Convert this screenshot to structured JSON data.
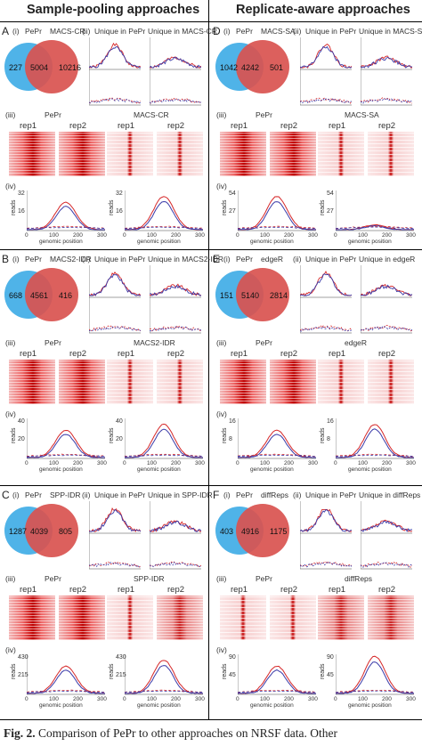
{
  "headers": {
    "left": "Sample-pooling approaches",
    "right": "Replicate-aware approaches"
  },
  "panels": [
    {
      "id": "A",
      "label": "A",
      "method": "MACS-CR",
      "venn": {
        "left": "227",
        "center": "5004",
        "right": "10216"
      },
      "sub_i": "(i)",
      "sub_ii": "(ii)",
      "sub_iii": "(iii)",
      "sub_iv": "(iv)",
      "unique_pepr": "Unique in PePr",
      "unique_other": "Unique in MACS-CR",
      "heat_left_title": "PePr",
      "heat_right_title": "MACS-CR",
      "rep1": "rep1",
      "rep2": "rep2",
      "ylabel": "reads",
      "yticks_a": [
        "32",
        "16"
      ],
      "yticks_b": [
        "32",
        "16"
      ],
      "xticks": [
        "0",
        "100",
        "200",
        "300"
      ],
      "xlabel": "genomic position"
    },
    {
      "id": "B",
      "label": "B",
      "method": "MACS2-IDR",
      "venn": {
        "left": "668",
        "center": "4561",
        "right": "416"
      },
      "sub_i": "(i)",
      "sub_ii": "(ii)",
      "sub_iii": "(iii)",
      "sub_iv": "(iv)",
      "unique_pepr": "Unique in PePr",
      "unique_other": "Unique in MACS2-IDR",
      "heat_left_title": "PePr",
      "heat_right_title": "MACS2-IDR",
      "rep1": "rep1",
      "rep2": "rep2",
      "ylabel": "reads",
      "yticks_a": [
        "40",
        "20"
      ],
      "yticks_b": [
        "40",
        "20"
      ],
      "xticks": [
        "0",
        "100",
        "200",
        "300"
      ],
      "xlabel": "genomic position"
    },
    {
      "id": "C",
      "label": "C",
      "method": "SPP-IDR",
      "venn": {
        "left": "1287",
        "center": "4039",
        "right": "805"
      },
      "sub_i": "(i)",
      "sub_ii": "(ii)",
      "sub_iii": "(iii)",
      "sub_iv": "(iv)",
      "unique_pepr": "Unique in PePr",
      "unique_other": "Unique in SPP-IDR",
      "heat_left_title": "PePr",
      "heat_right_title": "SPP-IDR",
      "rep1": "rep1",
      "rep2": "rep2",
      "ylabel": "reads",
      "yticks_a": [
        "430",
        "215"
      ],
      "yticks_b": [
        "430",
        "215"
      ],
      "xticks": [
        "0",
        "100",
        "200",
        "300"
      ],
      "xlabel": "genomic position"
    },
    {
      "id": "D",
      "label": "D",
      "method": "MACS-SA",
      "venn": {
        "left": "1042",
        "center": "4242",
        "right": "501"
      },
      "sub_i": "(i)",
      "sub_ii": "(ii)",
      "sub_iii": "(iii)",
      "sub_iv": "(iv)",
      "unique_pepr": "Unique in PePr",
      "unique_other": "Unique in MACS-SA",
      "heat_left_title": "PePr",
      "heat_right_title": "MACS-SA",
      "rep1": "rep1",
      "rep2": "rep2",
      "ylabel": "reads",
      "yticks_a": [
        "54",
        "27"
      ],
      "yticks_b": [
        "54",
        "27"
      ],
      "xticks": [
        "0",
        "100",
        "200",
        "300"
      ],
      "xlabel": "genomic position"
    },
    {
      "id": "E",
      "label": "E",
      "method": "edgeR",
      "venn": {
        "left": "151",
        "center": "5140",
        "right": "2814"
      },
      "sub_i": "(i)",
      "sub_ii": "(ii)",
      "sub_iii": "(iii)",
      "sub_iv": "(iv)",
      "unique_pepr": "Unique in PePr",
      "unique_other": "Unique in edgeR",
      "heat_left_title": "PePr",
      "heat_right_title": "edgeR",
      "rep1": "rep1",
      "rep2": "rep2",
      "ylabel": "reads",
      "yticks_a": [
        "16",
        "8"
      ],
      "yticks_b": [
        "16",
        "8"
      ],
      "xticks": [
        "0",
        "100",
        "200",
        "300"
      ],
      "xlabel": "genomic position"
    },
    {
      "id": "F",
      "label": "F",
      "method": "diffReps",
      "venn": {
        "left": "403",
        "center": "4916",
        "right": "1175"
      },
      "sub_i": "(i)",
      "sub_ii": "(ii)",
      "sub_iii": "(iii)",
      "sub_iv": "(iv)",
      "unique_pepr": "Unique in PePr",
      "unique_other": "Unique in diffReps",
      "heat_left_title": "PePr",
      "heat_right_title": "diffReps",
      "rep1": "rep1",
      "rep2": "rep2",
      "ylabel": "reads",
      "yticks_a": [
        "90",
        "45"
      ],
      "yticks_b": [
        "90",
        "45"
      ],
      "xticks": [
        "0",
        "100",
        "200",
        "300"
      ],
      "xlabel": "genomic position"
    }
  ],
  "venn_left_label": "PePr",
  "colors": {
    "pepr": "#4fb3e8",
    "other": "#d9534f",
    "rep1": "#d62728",
    "rep2": "#3a3aa8"
  },
  "caption": {
    "fig": "Fig. 2.",
    "text": " Comparison of PePr to other approaches on NRSF data. Other"
  }
}
